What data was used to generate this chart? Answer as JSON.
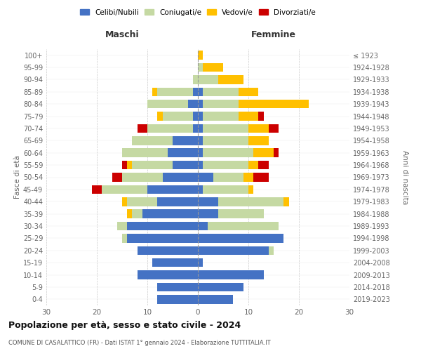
{
  "age_groups": [
    "0-4",
    "5-9",
    "10-14",
    "15-19",
    "20-24",
    "25-29",
    "30-34",
    "35-39",
    "40-44",
    "45-49",
    "50-54",
    "55-59",
    "60-64",
    "65-69",
    "70-74",
    "75-79",
    "80-84",
    "85-89",
    "90-94",
    "95-99",
    "100+"
  ],
  "birth_years": [
    "2019-2023",
    "2014-2018",
    "2009-2013",
    "2004-2008",
    "1999-2003",
    "1994-1998",
    "1989-1993",
    "1984-1988",
    "1979-1983",
    "1974-1978",
    "1969-1973",
    "1964-1968",
    "1959-1963",
    "1954-1958",
    "1949-1953",
    "1944-1948",
    "1939-1943",
    "1934-1938",
    "1929-1933",
    "1924-1928",
    "≤ 1923"
  ],
  "male": {
    "celibe": [
      8,
      8,
      12,
      9,
      12,
      14,
      14,
      11,
      8,
      10,
      7,
      5,
      6,
      5,
      1,
      1,
      2,
      1,
      0,
      0,
      0
    ],
    "coniugato": [
      0,
      0,
      0,
      0,
      0,
      1,
      2,
      2,
      6,
      9,
      8,
      8,
      9,
      8,
      9,
      6,
      8,
      7,
      1,
      0,
      0
    ],
    "vedovo": [
      0,
      0,
      0,
      0,
      0,
      0,
      0,
      1,
      1,
      0,
      0,
      1,
      0,
      0,
      0,
      1,
      0,
      1,
      0,
      0,
      0
    ],
    "divorziato": [
      0,
      0,
      0,
      0,
      0,
      0,
      0,
      0,
      0,
      2,
      2,
      1,
      0,
      0,
      2,
      0,
      0,
      0,
      0,
      0,
      0
    ]
  },
  "female": {
    "nubile": [
      7,
      9,
      13,
      1,
      14,
      17,
      2,
      4,
      4,
      1,
      3,
      1,
      1,
      1,
      1,
      1,
      1,
      1,
      0,
      0,
      0
    ],
    "coniugata": [
      0,
      0,
      0,
      0,
      1,
      0,
      14,
      9,
      13,
      9,
      6,
      9,
      10,
      9,
      9,
      7,
      7,
      7,
      4,
      1,
      0
    ],
    "vedova": [
      0,
      0,
      0,
      0,
      0,
      0,
      0,
      0,
      1,
      1,
      2,
      2,
      4,
      4,
      4,
      4,
      14,
      4,
      5,
      4,
      1
    ],
    "divorziata": [
      0,
      0,
      0,
      0,
      0,
      0,
      0,
      0,
      0,
      0,
      3,
      2,
      1,
      0,
      2,
      1,
      0,
      0,
      0,
      0,
      0
    ]
  },
  "color_celibe": "#4472c4",
  "color_coniugato": "#c5d9a3",
  "color_vedovo": "#ffc000",
  "color_divorziato": "#cc0000",
  "xlim": [
    -30,
    30
  ],
  "xticks": [
    -30,
    -20,
    -10,
    0,
    10,
    20,
    30
  ],
  "xtick_labels": [
    "30",
    "20",
    "10",
    "0",
    "10",
    "20",
    "30"
  ],
  "title": "Popolazione per età, sesso e stato civile - 2024",
  "subtitle": "COMUNE DI CASALATTICO (FR) - Dati ISTAT 1° gennaio 2024 - Elaborazione TUTTITALIA.IT",
  "ylabel_left": "Fasce di età",
  "ylabel_right": "Anni di nascita",
  "label_maschi": "Maschi",
  "label_femmine": "Femmine",
  "legend_celibe": "Celibi/Nubili",
  "legend_coniugato": "Coniugati/e",
  "legend_vedovo": "Vedovi/e",
  "legend_divorziato": "Divorziati/e"
}
